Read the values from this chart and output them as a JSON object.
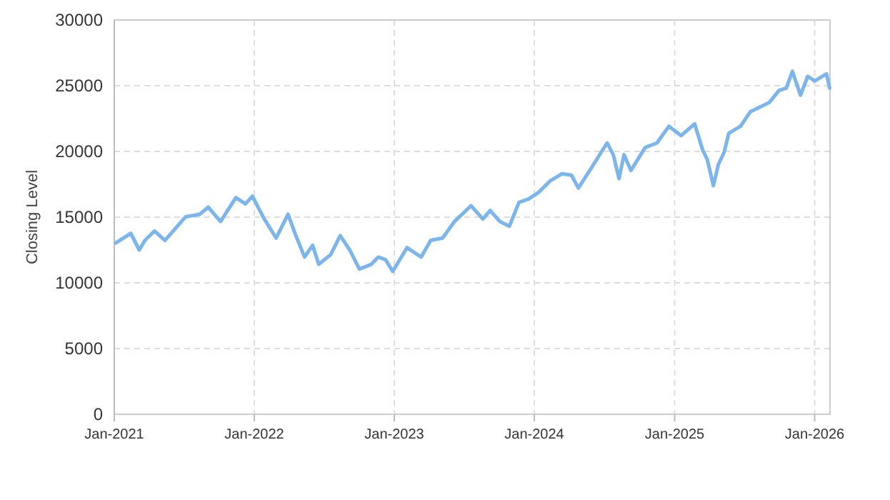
{
  "chart_data": {
    "type": "line",
    "ylabel": "Closing Level",
    "xlim": [
      "2021-01-01",
      "2026-02-10"
    ],
    "ylim": [
      0,
      30000
    ],
    "xticks": [
      {
        "value": "2021-01-01",
        "label": "Jan-2021"
      },
      {
        "value": "2022-01-01",
        "label": "Jan-2022"
      },
      {
        "value": "2023-01-01",
        "label": "Jan-2023"
      },
      {
        "value": "2024-01-01",
        "label": "Jan-2024"
      },
      {
        "value": "2025-01-01",
        "label": "Jan-2025"
      },
      {
        "value": "2026-01-01",
        "label": "Jan-2026"
      }
    ],
    "yticks": [
      0,
      5000,
      10000,
      15000,
      20000,
      25000,
      30000
    ],
    "grid": true,
    "marker": "none",
    "line_style": "solid",
    "series": [
      {
        "color": "#7cb5ec",
        "x": [
          "2021-01-05",
          "2021-02-13",
          "2021-03-07",
          "2021-03-22",
          "2021-04-16",
          "2021-05-13",
          "2021-07-06",
          "2021-08-12",
          "2021-09-03",
          "2021-10-05",
          "2021-11-14",
          "2021-12-09",
          "2021-12-27",
          "2022-01-27",
          "2022-02-27",
          "2022-03-30",
          "2022-04-17",
          "2022-05-12",
          "2022-06-02",
          "2022-06-18",
          "2022-07-19",
          "2022-08-13",
          "2022-09-07",
          "2022-10-02",
          "2022-11-02",
          "2022-11-20",
          "2022-12-09",
          "2022-12-28",
          "2023-02-03",
          "2023-03-12",
          "2023-04-06",
          "2023-05-07",
          "2023-06-07",
          "2023-07-20",
          "2023-08-20",
          "2023-09-08",
          "2023-10-03",
          "2023-10-28",
          "2023-11-22",
          "2023-12-17",
          "2024-01-11",
          "2024-02-11",
          "2024-03-13",
          "2024-04-07",
          "2024-04-25",
          "2024-05-27",
          "2024-07-09",
          "2024-07-25",
          "2024-08-09",
          "2024-08-22",
          "2024-09-09",
          "2024-10-16",
          "2024-11-16",
          "2024-12-17",
          "2025-01-18",
          "2025-02-22",
          "2025-03-15",
          "2025-03-27",
          "2025-04-12",
          "2025-04-25",
          "2025-05-10",
          "2025-05-22",
          "2025-06-22",
          "2025-07-17",
          "2025-08-11",
          "2025-09-05",
          "2025-09-30",
          "2025-10-19",
          "2025-11-04",
          "2025-11-25",
          "2025-12-14",
          "2026-01-01",
          "2026-02-01",
          "2026-02-09"
        ],
        "values": [
          13040,
          13770,
          12500,
          13230,
          13950,
          13230,
          15030,
          15220,
          15760,
          14670,
          16490,
          16010,
          16590,
          14860,
          13410,
          15220,
          13770,
          11960,
          12860,
          11410,
          12140,
          13590,
          12500,
          11050,
          11410,
          11960,
          11770,
          10870,
          12680,
          11960,
          13230,
          13410,
          14670,
          15870,
          14860,
          15510,
          14670,
          14310,
          16120,
          16380,
          16850,
          17750,
          18300,
          18190,
          17210,
          18660,
          20650,
          19750,
          17930,
          19750,
          18550,
          20290,
          20650,
          21920,
          21200,
          22100,
          20110,
          19380,
          17390,
          19020,
          19930,
          21380,
          21920,
          23010,
          23370,
          23730,
          24640,
          24820,
          26090,
          24280,
          25720,
          25360,
          25900,
          24820
        ]
      }
    ]
  }
}
